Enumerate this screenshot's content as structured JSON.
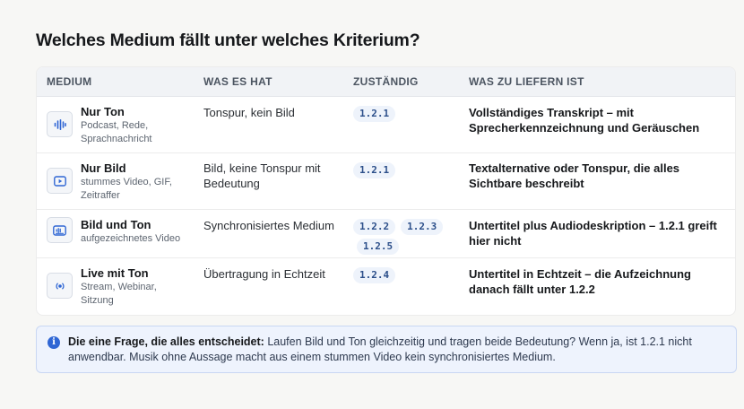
{
  "title": "Welches Medium fällt unter welches Kriterium?",
  "table": {
    "headers": {
      "medium": "MEDIUM",
      "has": "WAS ES HAT",
      "responsible": "ZUSTÄNDIG",
      "deliver": "WAS ZU LIEFERN IST"
    },
    "rows": [
      {
        "icon": "audio-waveform-icon",
        "title": "Nur Ton",
        "subtitle": "Podcast, Rede, Sprachnachricht",
        "has": "Tonspur, kein Bild",
        "criteria": [
          "1.2.1"
        ],
        "deliver": "Vollständiges Transkript – mit Sprecherkennzeichnung und Geräuschen"
      },
      {
        "icon": "video-play-icon",
        "title": "Nur Bild",
        "subtitle": "stummes Video, GIF, Zeitraffer",
        "has": "Bild, keine Tonspur mit Bedeutung",
        "criteria": [
          "1.2.1"
        ],
        "deliver": "Textalternative oder Tonspur, die alles Sichtbare beschreibt"
      },
      {
        "icon": "video-audio-icon",
        "title": "Bild und Ton",
        "subtitle": "aufgezeichnetes Video",
        "has": "Synchronisiertes Medium",
        "criteria": [
          "1.2.2",
          "1.2.3",
          "1.2.5"
        ],
        "deliver": "Untertitel plus Audiodeskription – 1.2.1 greift hier nicht"
      },
      {
        "icon": "live-broadcast-icon",
        "title": "Live mit Ton",
        "subtitle": "Stream, Webinar, Sitzung",
        "has": "Übertragung in Echtzeit",
        "criteria": [
          "1.2.4"
        ],
        "deliver": "Untertitel in Echtzeit – die Aufzeichnung danach fällt unter 1.2.2"
      }
    ]
  },
  "note": {
    "icon": "info-icon",
    "icon_glyph": "i",
    "lead": "Die eine Frage, die alles entscheidet:",
    "text": "Laufen Bild und Ton gleichzeitig und tragen beide Bedeutung? Wenn ja, ist 1.2.1 nicht anwendbar. Musik ohne Aussage macht aus einem stummen Video kein synchronisiertes Medium."
  },
  "colors": {
    "accent": "#2f66d4",
    "chip_text": "#2c4f8a",
    "chip_bg": "#eef3fb",
    "note_bg": "#eef3fd"
  }
}
